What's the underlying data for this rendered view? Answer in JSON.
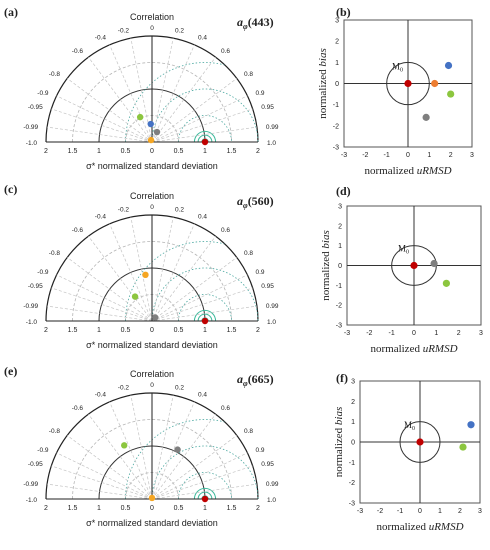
{
  "chart_data": [
    {
      "type": "scatter",
      "subtype": "taylor-diagram",
      "panel_label": "(a)",
      "title_base": "a",
      "title_sub": "φ",
      "title_arg": "(443)",
      "arc_label": "Correlation",
      "xlabel": "σ* normalized standard deviation",
      "corr_ticks_left": [
        "0",
        "-0.2",
        "-0.4",
        "-0.6",
        "-0.8",
        "-0.9",
        "-0.95",
        "-0.99",
        "-1.0"
      ],
      "corr_ticks_right": [
        "0.2",
        "0.4",
        "0.6",
        "0.8",
        "0.9",
        "0.95",
        "0.99",
        "1.0"
      ],
      "x_ticks": [
        "2",
        "1.5",
        "1",
        "0.5",
        "0",
        "0.5",
        "1",
        "1.5",
        "2"
      ],
      "xlim": [
        -2,
        2
      ],
      "points": [
        {
          "color": "#4472c4",
          "std": 0.34,
          "corr": -0.07
        },
        {
          "color": "#8cc63f",
          "std": 0.52,
          "corr": -0.43
        },
        {
          "color": "#7f7f7f",
          "std": 0.21,
          "corr": 0.45
        },
        {
          "color": "#f5a623",
          "std": 0.04,
          "corr": -0.45
        },
        {
          "color": "#c00000",
          "std": 1.0,
          "corr": 1.0
        }
      ]
    },
    {
      "type": "scatter",
      "subtype": "target-diagram",
      "panel_label": "(b)",
      "xlabel_prefix": "normalized ",
      "xlabel_italic": "uRMSD",
      "ylabel_prefix": "normalized ",
      "ylabel_italic": "bias",
      "ref_label": "M",
      "ref_sub": "0",
      "x_ticks": [
        "-3",
        "-2",
        "-1",
        "0",
        "1",
        "2",
        "3"
      ],
      "y_ticks": [
        "3",
        "2",
        "1",
        "0",
        "-1",
        "-2",
        "-3"
      ],
      "xlim": [
        -3,
        3
      ],
      "ylim": [
        -3,
        3
      ],
      "points": [
        {
          "color": "#4472c4",
          "x": 1.9,
          "y": 0.85
        },
        {
          "color": "#ed7d31",
          "x": 1.25,
          "y": 0.0
        },
        {
          "color": "#8cc63f",
          "x": 2.0,
          "y": -0.5
        },
        {
          "color": "#7f7f7f",
          "x": 0.85,
          "y": -1.6
        },
        {
          "color": "#c00000",
          "x": 0.0,
          "y": 0.0
        }
      ]
    },
    {
      "type": "scatter",
      "subtype": "taylor-diagram",
      "panel_label": "(c)",
      "title_base": "a",
      "title_sub": "φ",
      "title_arg": "(560)",
      "arc_label": "Correlation",
      "xlabel": "σ* normalized standard deviation",
      "corr_ticks_left": [
        "0",
        "-0.2",
        "-0.4",
        "-0.6",
        "-0.8",
        "-0.9",
        "-0.95",
        "-0.99",
        "-1.0"
      ],
      "corr_ticks_right": [
        "0.2",
        "0.4",
        "0.6",
        "0.8",
        "0.9",
        "0.95",
        "0.99",
        "1.0"
      ],
      "x_ticks": [
        "2",
        "1.5",
        "1",
        "0.5",
        "0",
        "0.5",
        "1",
        "1.5",
        "2"
      ],
      "xlim": [
        -2,
        2
      ],
      "points": [
        {
          "color": "#f5a623",
          "std": 0.88,
          "corr": -0.14
        },
        {
          "color": "#8cc63f",
          "std": 0.56,
          "corr": -0.57
        },
        {
          "color": "#7f7f7f",
          "std": 0.09,
          "corr": 0.68
        },
        {
          "color": "#c00000",
          "std": 1.0,
          "corr": 1.0
        }
      ]
    },
    {
      "type": "scatter",
      "subtype": "target-diagram",
      "panel_label": "(d)",
      "xlabel_prefix": "normalized ",
      "xlabel_italic": "uRMSD",
      "ylabel_prefix": "normalized ",
      "ylabel_italic": "bias",
      "ref_label": "M",
      "ref_sub": "0",
      "x_ticks": [
        "-3",
        "-2",
        "-1",
        "0",
        "1",
        "2",
        "3"
      ],
      "y_ticks": [
        "3",
        "2",
        "1",
        "0",
        "-1",
        "-2",
        "-3"
      ],
      "xlim": [
        -3,
        3
      ],
      "ylim": [
        -3,
        3
      ],
      "points": [
        {
          "color": "#7f7f7f",
          "x": 0.9,
          "y": 0.1
        },
        {
          "color": "#8cc63f",
          "x": 1.45,
          "y": -0.9
        },
        {
          "color": "#c00000",
          "x": 0.0,
          "y": 0.0
        }
      ]
    },
    {
      "type": "scatter",
      "subtype": "taylor-diagram",
      "panel_label": "(e)",
      "title_base": "a",
      "title_sub": "φ",
      "title_arg": "(665)",
      "arc_label": "Correlation",
      "xlabel": "σ* normalized standard deviation",
      "corr_ticks_left": [
        "0",
        "-0.2",
        "-0.4",
        "-0.6",
        "-0.8",
        "-0.9",
        "-0.95",
        "-0.99",
        "-1.0"
      ],
      "corr_ticks_right": [
        "0.2",
        "0.4",
        "0.6",
        "0.8",
        "0.9",
        "0.95",
        "0.99",
        "1.0"
      ],
      "x_ticks": [
        "2",
        "1.5",
        "1",
        "0.5",
        "0",
        "0.5",
        "1",
        "1.5",
        "2"
      ],
      "xlim": [
        -2,
        2
      ],
      "points": [
        {
          "color": "#7f7f7f",
          "std": 1.05,
          "corr": 0.46
        },
        {
          "color": "#8cc63f",
          "std": 1.14,
          "corr": -0.46
        },
        {
          "color": "#f5a623",
          "std": 0.02,
          "corr": 0.0
        },
        {
          "color": "#c00000",
          "std": 1.0,
          "corr": 1.0
        }
      ]
    },
    {
      "type": "scatter",
      "subtype": "target-diagram",
      "panel_label": "(f)",
      "xlabel_prefix": "normalized ",
      "xlabel_italic": "uRMSD",
      "ylabel_prefix": "normalized ",
      "ylabel_italic": "bias",
      "ref_label": "M",
      "ref_sub": "0",
      "x_ticks": [
        "-3",
        "-2",
        "-1",
        "0",
        "1",
        "2",
        "3"
      ],
      "y_ticks": [
        "3",
        "2",
        "1",
        "0",
        "-1",
        "-2",
        "-3"
      ],
      "xlim": [
        -3,
        3
      ],
      "ylim": [
        -3,
        3
      ],
      "points": [
        {
          "color": "#4472c4",
          "x": 2.55,
          "y": 0.85
        },
        {
          "color": "#8cc63f",
          "x": 2.15,
          "y": -0.25
        },
        {
          "color": "#c00000",
          "x": 0.0,
          "y": 0.0
        }
      ]
    }
  ]
}
